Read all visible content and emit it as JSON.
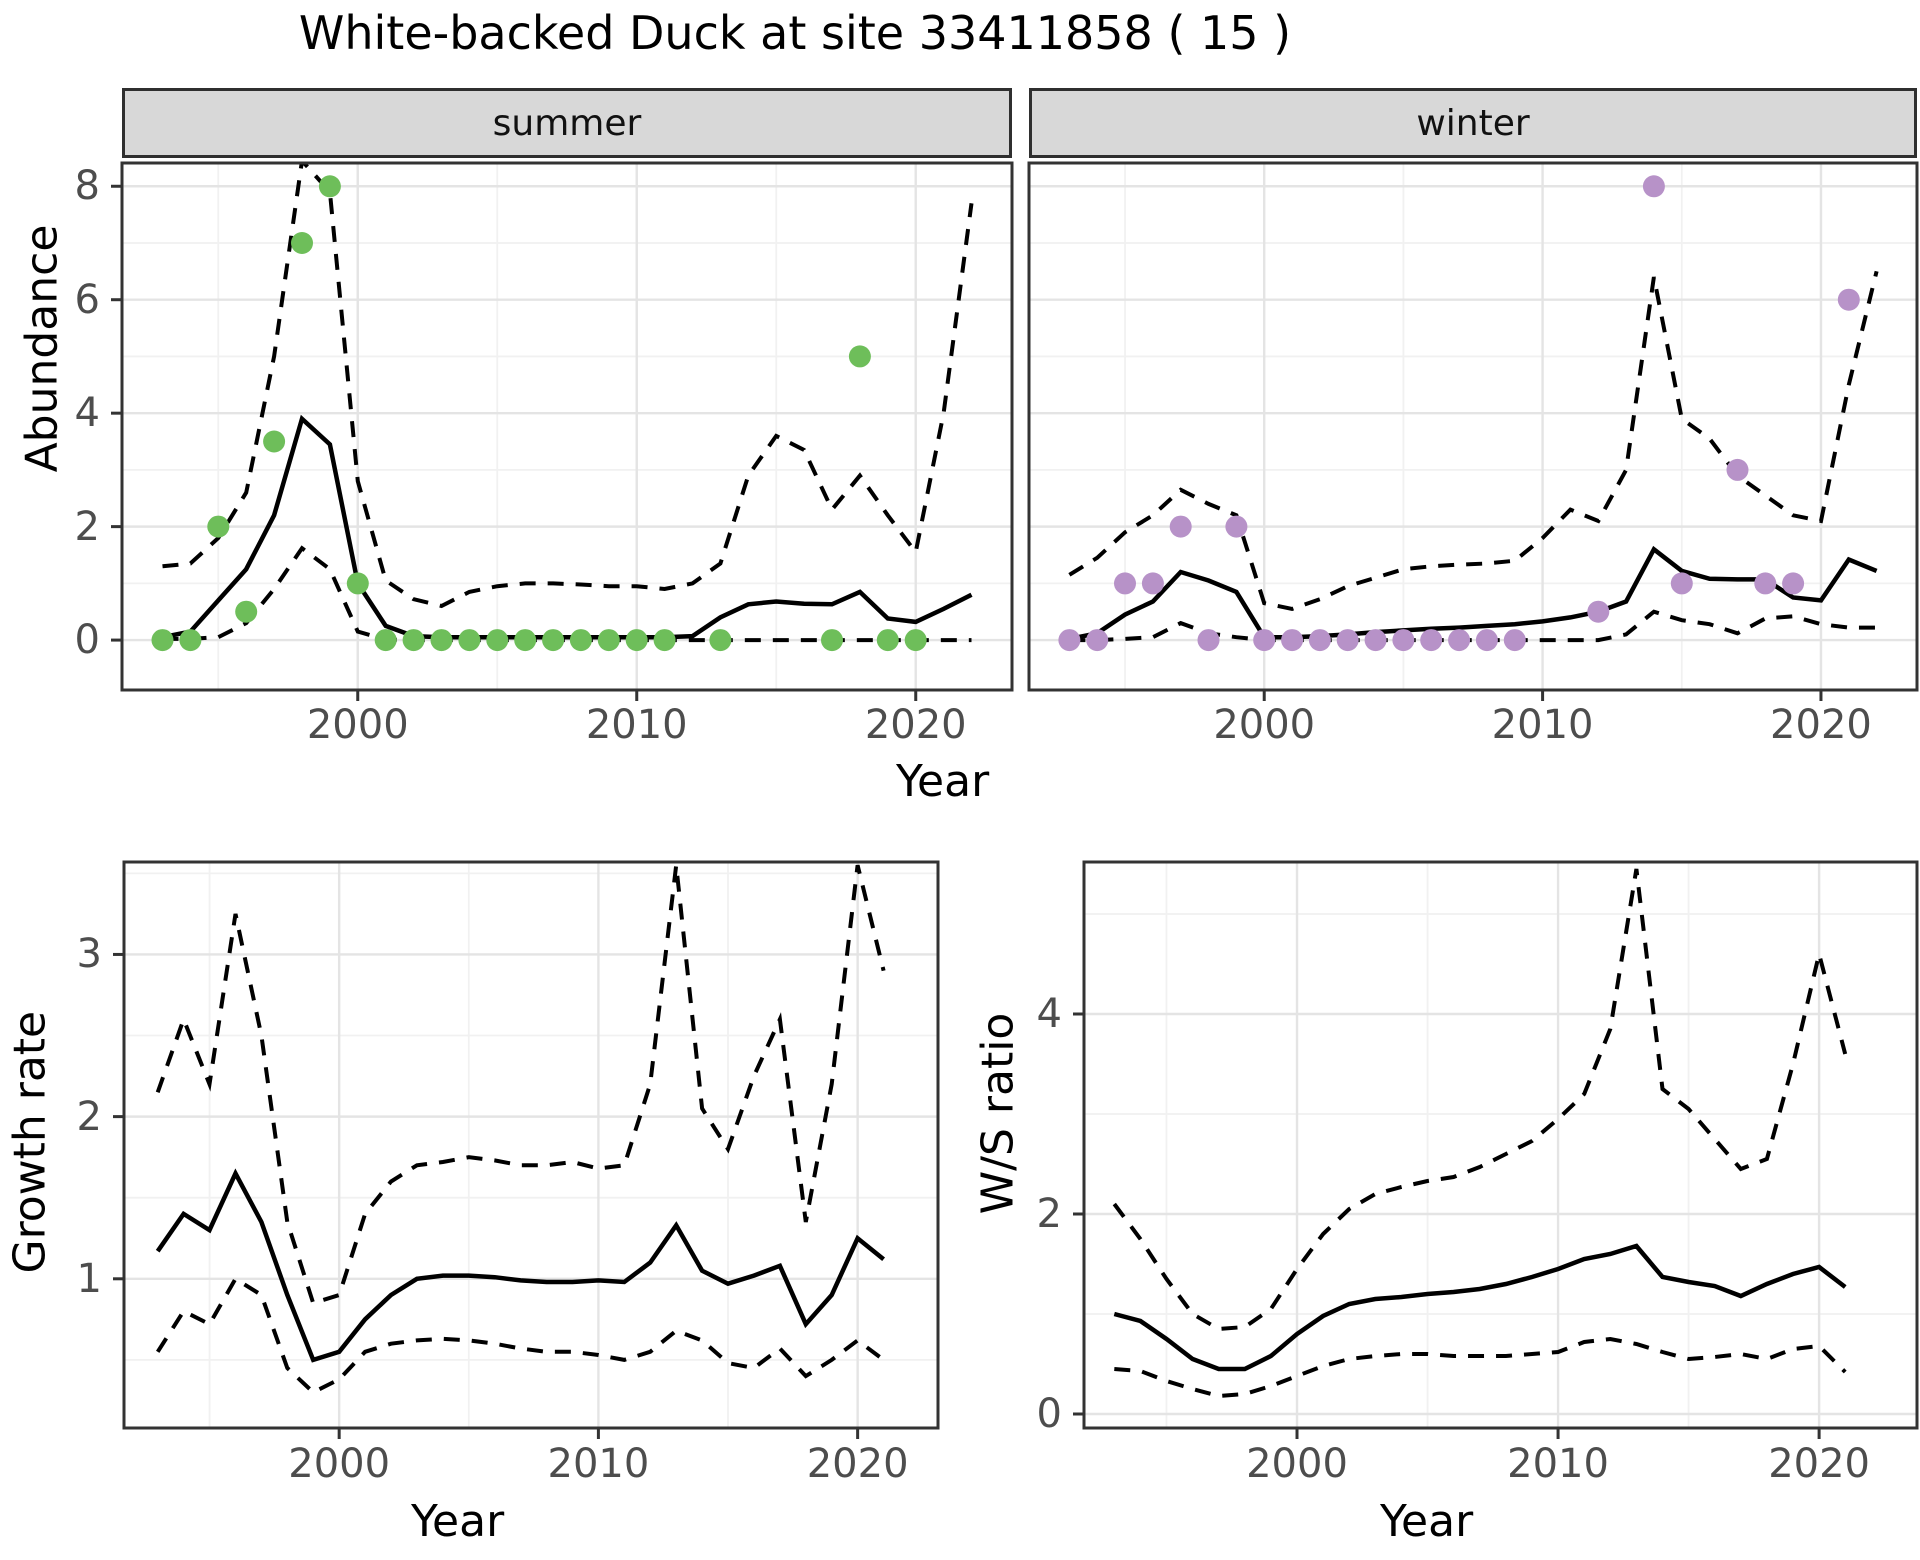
{
  "labels": {
    "title": "White-backed Duck at site 33411858 ( 15 )",
    "facet_summer": "summer",
    "facet_winter": "winter",
    "ylabel_abundance": "Abundance",
    "ylabel_growth": "Growth rate",
    "ylabel_ws": "W/S ratio",
    "xlabel_top": "Year",
    "xlabel_growth": "Year",
    "xlabel_ws": "Year"
  },
  "colors": {
    "summer_points": "#6EBE5A",
    "winter_points": "#B792C8",
    "line": "#000000",
    "grid_major": "#E4E4E4",
    "grid_minor": "#F1F1F1",
    "strip_fill": "#D8D8D8",
    "panel_border": "#333333",
    "tick_label": "#4D4D4D"
  },
  "chart_data": [
    {
      "type": "line",
      "title": "summer",
      "xlabel": "Year",
      "ylabel": "Abundance",
      "xlim": [
        1991.55,
        2023.45
      ],
      "ylim": [
        -0.88,
        8.41
      ],
      "xticks": [
        2000,
        2010,
        2020
      ],
      "yticks": [
        0,
        2,
        4,
        6,
        8
      ],
      "minor_x": [
        1995,
        2005,
        2015
      ],
      "minor_y": [
        1,
        3,
        5,
        7
      ],
      "x": [
        1993,
        1994,
        1995,
        1996,
        1997,
        1998,
        1999,
        2000,
        2001,
        2002,
        2003,
        2004,
        2005,
        2006,
        2007,
        2008,
        2009,
        2010,
        2011,
        2012,
        2013,
        2014,
        2015,
        2016,
        2017,
        2018,
        2019,
        2020,
        2021,
        2022
      ],
      "series": [
        {
          "name": "mean",
          "style": "solid",
          "values": [
            0.05,
            0.15,
            0.7,
            1.25,
            2.2,
            3.9,
            3.45,
            1.0,
            0.25,
            0.07,
            0.05,
            0.05,
            0.05,
            0.05,
            0.05,
            0.05,
            0.05,
            0.05,
            0.05,
            0.07,
            0.4,
            0.63,
            0.68,
            0.64,
            0.63,
            0.85,
            0.38,
            0.32,
            0.55,
            0.8
          ]
        },
        {
          "name": "upper_ci",
          "style": "dashed",
          "values": [
            1.3,
            1.35,
            1.8,
            2.6,
            5.0,
            8.45,
            7.9,
            2.8,
            1.05,
            0.72,
            0.6,
            0.85,
            0.95,
            1.0,
            1.0,
            0.98,
            0.95,
            0.95,
            0.9,
            1.0,
            1.35,
            2.9,
            3.6,
            3.35,
            2.3,
            2.9,
            2.2,
            1.55,
            4.0,
            7.7
          ]
        },
        {
          "name": "lower_ci",
          "style": "dashed",
          "values": [
            0.02,
            0.02,
            0.05,
            0.3,
            0.9,
            1.62,
            1.25,
            0.15,
            0.01,
            0,
            0,
            0,
            0,
            0,
            0,
            0,
            0,
            0,
            0,
            0,
            0,
            0,
            0,
            0,
            0,
            0,
            0,
            0,
            0,
            0
          ]
        }
      ],
      "points": {
        "color": "#6EBE5A",
        "x": [
          1993,
          1994,
          1995,
          1996,
          1997,
          1998,
          1999,
          2000,
          2001,
          2002,
          2003,
          2004,
          2005,
          2006,
          2007,
          2008,
          2009,
          2010,
          2011,
          2013,
          2017,
          2018,
          2019,
          2020
        ],
        "y": [
          0,
          0,
          2,
          0.5,
          3.5,
          7,
          8,
          1,
          0,
          0,
          0,
          0,
          0,
          0,
          0,
          0,
          0,
          0,
          0,
          0,
          0,
          5,
          0,
          0
        ]
      }
    },
    {
      "type": "line",
      "title": "winter",
      "xlabel": "Year",
      "ylabel": "Abundance",
      "xlim": [
        1991.55,
        2023.45
      ],
      "ylim": [
        -0.88,
        8.41
      ],
      "xticks": [
        2000,
        2010,
        2020
      ],
      "yticks": [
        0,
        2,
        4,
        6,
        8
      ],
      "minor_x": [
        1995,
        2005,
        2015
      ],
      "minor_y": [
        1,
        3,
        5,
        7
      ],
      "x": [
        1993,
        1994,
        1995,
        1996,
        1997,
        1998,
        1999,
        2000,
        2001,
        2002,
        2003,
        2004,
        2005,
        2006,
        2007,
        2008,
        2009,
        2010,
        2011,
        2012,
        2013,
        2014,
        2015,
        2016,
        2017,
        2018,
        2019,
        2020,
        2021,
        2022
      ],
      "series": [
        {
          "name": "mean",
          "style": "solid",
          "values": [
            0.02,
            0.12,
            0.45,
            0.68,
            1.2,
            1.05,
            0.85,
            0.05,
            0.05,
            0.07,
            0.1,
            0.14,
            0.17,
            0.2,
            0.22,
            0.25,
            0.28,
            0.33,
            0.4,
            0.5,
            0.68,
            1.6,
            1.22,
            1.08,
            1.07,
            1.07,
            0.75,
            0.7,
            1.42,
            1.22
          ]
        },
        {
          "name": "upper_ci",
          "style": "dashed",
          "values": [
            1.15,
            1.45,
            1.9,
            2.2,
            2.65,
            2.4,
            2.2,
            0.65,
            0.55,
            0.72,
            0.95,
            1.1,
            1.25,
            1.3,
            1.33,
            1.35,
            1.4,
            1.8,
            2.3,
            2.1,
            3.0,
            6.4,
            3.9,
            3.55,
            2.9,
            2.55,
            2.2,
            2.1,
            4.5,
            6.5
          ]
        },
        {
          "name": "lower_ci",
          "style": "dashed",
          "values": [
            0,
            0,
            0.02,
            0.05,
            0.3,
            0.12,
            0.05,
            0,
            0,
            0,
            0,
            0,
            0,
            0,
            0,
            0,
            0,
            0,
            0,
            0,
            0.1,
            0.5,
            0.35,
            0.28,
            0.12,
            0.38,
            0.42,
            0.28,
            0.22,
            0.22
          ]
        }
      ],
      "points": {
        "color": "#B792C8",
        "x": [
          1993,
          1994,
          1995,
          1996,
          1997,
          1998,
          1999,
          2000,
          2001,
          2002,
          2003,
          2004,
          2005,
          2006,
          2007,
          2008,
          2009,
          2012,
          2014,
          2015,
          2017,
          2018,
          2019,
          2021
        ],
        "y": [
          0,
          0,
          1,
          1,
          2,
          0,
          2,
          0,
          0,
          0,
          0,
          0,
          0,
          0,
          0,
          0,
          0,
          0.5,
          8,
          1,
          3,
          1,
          1,
          6
        ]
      }
    },
    {
      "type": "line",
      "title": "Growth rate",
      "xlabel": "Year",
      "ylabel": "Growth rate",
      "xlim": [
        1991.7,
        2023.1
      ],
      "ylim": [
        0.08,
        3.57
      ],
      "xticks": [
        2000,
        2010,
        2020
      ],
      "yticks": [
        1,
        2,
        3
      ],
      "minor_x": [
        1995,
        2005,
        2015
      ],
      "minor_y": [
        0.5,
        1.5,
        2.5,
        3.5
      ],
      "x": [
        1993,
        1994,
        1995,
        1996,
        1997,
        1998,
        1999,
        2000,
        2001,
        2002,
        2003,
        2004,
        2005,
        2006,
        2007,
        2008,
        2009,
        2010,
        2011,
        2012,
        2013,
        2014,
        2015,
        2016,
        2017,
        2018,
        2019,
        2020,
        2021
      ],
      "series": [
        {
          "name": "mean",
          "style": "solid",
          "values": [
            1.17,
            1.4,
            1.3,
            1.65,
            1.35,
            0.9,
            0.5,
            0.55,
            0.75,
            0.9,
            1.0,
            1.02,
            1.02,
            1.01,
            0.99,
            0.98,
            0.98,
            0.99,
            0.98,
            1.1,
            1.33,
            1.05,
            0.97,
            1.02,
            1.08,
            0.72,
            0.9,
            1.25,
            1.12
          ]
        },
        {
          "name": "upper_ci",
          "style": "dashed",
          "values": [
            2.15,
            2.6,
            2.2,
            3.25,
            2.5,
            1.35,
            0.85,
            0.9,
            1.4,
            1.6,
            1.7,
            1.72,
            1.75,
            1.73,
            1.7,
            1.7,
            1.72,
            1.68,
            1.7,
            2.2,
            3.55,
            2.05,
            1.8,
            2.25,
            2.6,
            1.35,
            2.2,
            3.55,
            2.9
          ]
        },
        {
          "name": "lower_ci",
          "style": "dashed",
          "values": [
            0.55,
            0.8,
            0.72,
            1.0,
            0.9,
            0.45,
            0.3,
            0.38,
            0.55,
            0.6,
            0.62,
            0.63,
            0.62,
            0.6,
            0.57,
            0.55,
            0.55,
            0.53,
            0.5,
            0.55,
            0.68,
            0.62,
            0.48,
            0.45,
            0.57,
            0.4,
            0.5,
            0.62,
            0.5
          ]
        }
      ],
      "points": null
    },
    {
      "type": "line",
      "title": "W/S ratio",
      "xlabel": "Year",
      "ylabel": "W/S ratio",
      "xlim": [
        1991.84,
        2023.75
      ],
      "ylim": [
        -0.14,
        5.52
      ],
      "xticks": [
        2000,
        2010,
        2020
      ],
      "yticks": [
        0,
        2,
        4
      ],
      "minor_x": [
        1995,
        2005,
        2015
      ],
      "minor_y": [
        1,
        3,
        5
      ],
      "x": [
        1993,
        1994,
        1995,
        1996,
        1997,
        1998,
        1999,
        2000,
        2001,
        2002,
        2003,
        2004,
        2005,
        2006,
        2007,
        2008,
        2009,
        2010,
        2011,
        2012,
        2013,
        2014,
        2015,
        2016,
        2017,
        2018,
        2019,
        2020,
        2021
      ],
      "series": [
        {
          "name": "mean",
          "style": "solid",
          "values": [
            1.0,
            0.93,
            0.75,
            0.55,
            0.45,
            0.45,
            0.58,
            0.8,
            0.98,
            1.1,
            1.15,
            1.17,
            1.2,
            1.22,
            1.25,
            1.3,
            1.37,
            1.45,
            1.55,
            1.6,
            1.68,
            1.37,
            1.32,
            1.28,
            1.18,
            1.3,
            1.4,
            1.47,
            1.27
          ]
        },
        {
          "name": "upper_ci",
          "style": "dashed",
          "values": [
            2.1,
            1.75,
            1.35,
            1.0,
            0.85,
            0.87,
            1.05,
            1.45,
            1.8,
            2.05,
            2.2,
            2.27,
            2.33,
            2.37,
            2.47,
            2.6,
            2.73,
            2.95,
            3.2,
            3.85,
            5.45,
            3.25,
            3.05,
            2.75,
            2.45,
            2.55,
            3.5,
            4.6,
            3.6
          ]
        },
        {
          "name": "lower_ci",
          "style": "dashed",
          "values": [
            0.45,
            0.43,
            0.33,
            0.25,
            0.18,
            0.2,
            0.28,
            0.38,
            0.48,
            0.55,
            0.58,
            0.6,
            0.6,
            0.58,
            0.58,
            0.58,
            0.6,
            0.62,
            0.72,
            0.75,
            0.7,
            0.62,
            0.55,
            0.57,
            0.6,
            0.55,
            0.65,
            0.68,
            0.42
          ]
        }
      ],
      "points": null
    }
  ]
}
